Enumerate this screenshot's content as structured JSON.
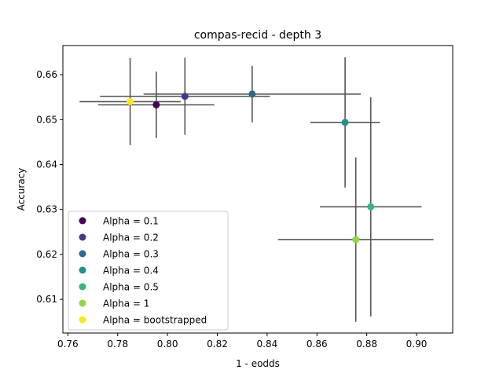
{
  "chart_data": {
    "type": "scatter",
    "title": "compas-recid - depth 3",
    "xlabel": "1 - eodds",
    "ylabel": "Accuracy",
    "xlim": [
      0.758,
      0.9145
    ],
    "ylim": [
      0.6025,
      0.6665
    ],
    "xticks": [
      0.76,
      0.78,
      0.8,
      0.82,
      0.84,
      0.86,
      0.88,
      0.9
    ],
    "xtick_labels": [
      "0.76",
      "0.78",
      "0.80",
      "0.82",
      "0.84",
      "0.86",
      "0.88",
      "0.90"
    ],
    "yticks": [
      0.61,
      0.62,
      0.63,
      0.64,
      0.65,
      0.66
    ],
    "ytick_labels": [
      "0.61",
      "0.62",
      "0.63",
      "0.64",
      "0.65",
      "0.66"
    ],
    "grid": false,
    "legend_position": "lower-left",
    "errorbar_color": "#555555",
    "series": [
      {
        "name": "Alpha = 0.1",
        "color": "#440154",
        "x": 0.7955,
        "y": 0.6533,
        "xerr": [
          0.0233,
          0.0233
        ],
        "yerr": [
          0.0074,
          0.0074
        ]
      },
      {
        "name": "Alpha = 0.2",
        "color": "#443983",
        "x": 0.807,
        "y": 0.6552,
        "xerr": [
          0.0341,
          0.0341
        ],
        "yerr": [
          0.0086,
          0.0086
        ]
      },
      {
        "name": "Alpha = 0.3",
        "color": "#31688e",
        "x": 0.834,
        "y": 0.6557,
        "xerr": [
          0.0436,
          0.0436
        ],
        "yerr": [
          0.0063,
          0.0063
        ]
      },
      {
        "name": "Alpha = 0.4",
        "color": "#21918c",
        "x": 0.8713,
        "y": 0.6494,
        "xerr": [
          0.014,
          0.014
        ],
        "yerr": [
          0.0145,
          0.0145
        ]
      },
      {
        "name": "Alpha = 0.5",
        "color": "#35b779",
        "x": 0.8816,
        "y": 0.6306,
        "xerr": [
          0.0204,
          0.0204
        ],
        "yerr": [
          0.0244,
          0.0244
        ]
      },
      {
        "name": "Alpha = 1",
        "color": "#90d743",
        "x": 0.8756,
        "y": 0.6233,
        "xerr": [
          0.0312,
          0.0312
        ],
        "yerr": [
          0.0183,
          0.0183
        ]
      },
      {
        "name": "Alpha = bootstrapped",
        "color": "#fde725",
        "x": 0.785,
        "y": 0.654,
        "xerr": [
          0.0203,
          0.0203
        ],
        "yerr": [
          0.0097,
          0.0097
        ]
      }
    ]
  }
}
